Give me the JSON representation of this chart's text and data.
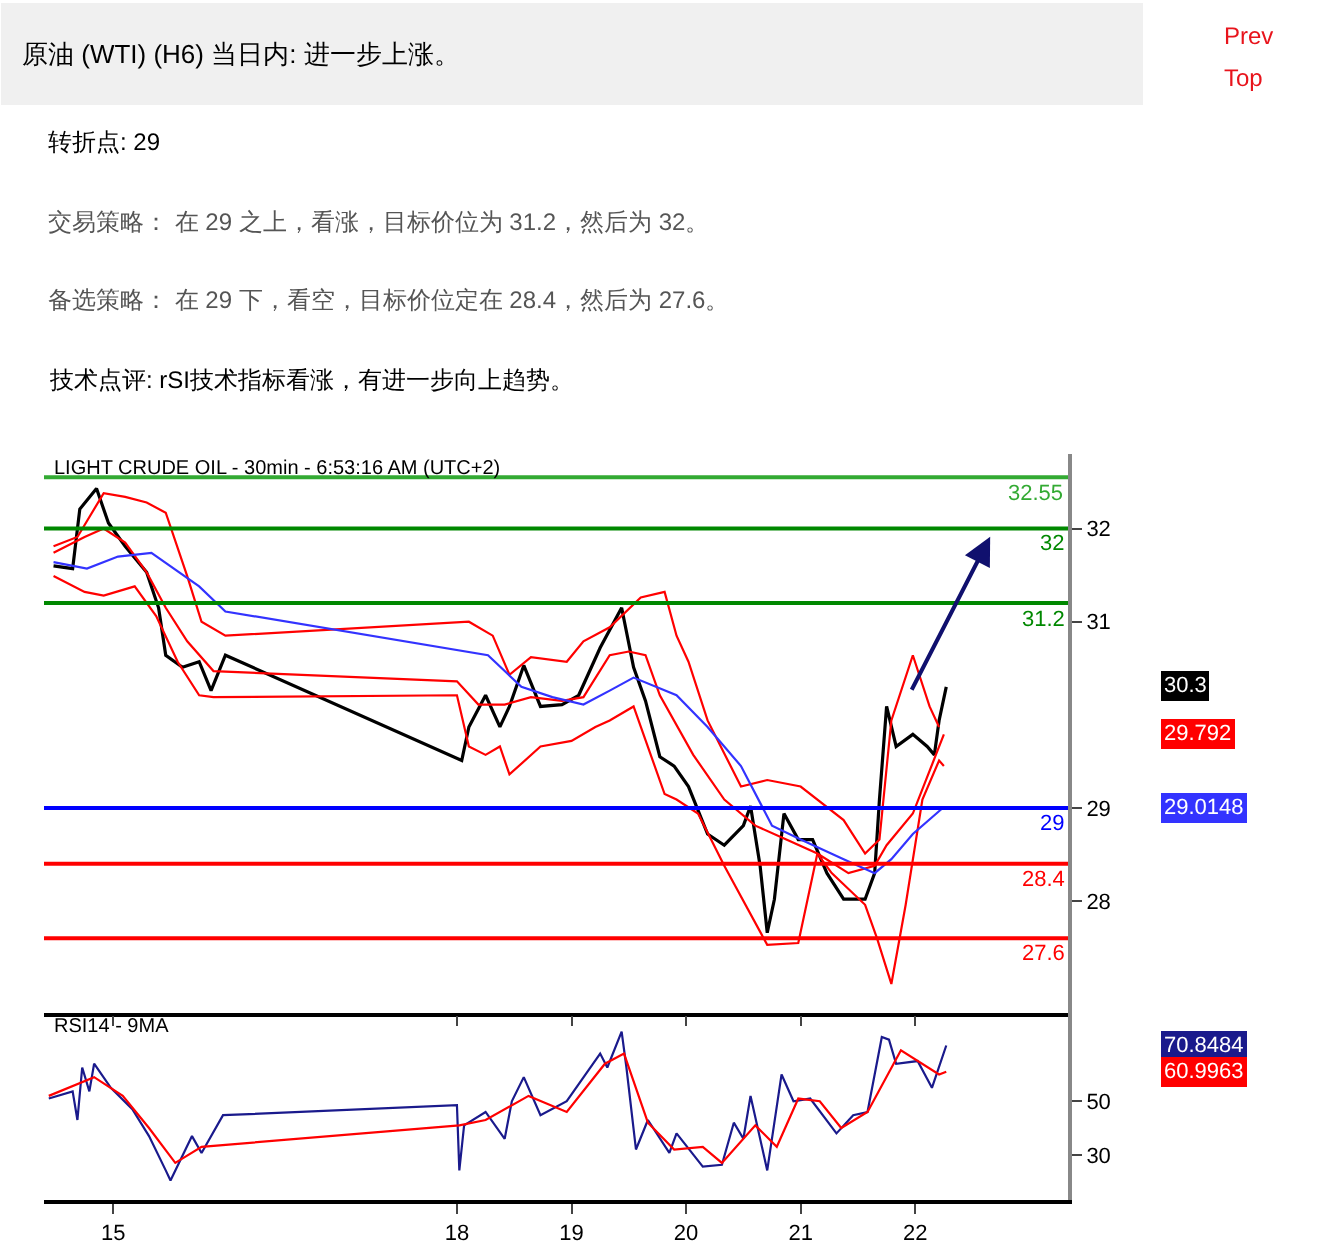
{
  "chart_data": [
    {
      "type": "line",
      "title": "原油 (WTI) (H6) 当日内: 进一步上涨。",
      "subtitle": "LIGHT CRUDE OIL - 30min - 6:53:16 AM (UTC+2)",
      "annotations": [
        "转折点: 29",
        "交易策略： 在 29 之上，看涨，目标价位为 31.2，然后为 32。",
        "备选策略： 在 29 下，看空，目标价位定在 28.4，然后为 27.6。",
        "技术点评: rSI技术指标看涨，有进一步向上趋势。",
        "Prev",
        "Top",
        "30.3",
        "29.792",
        "29.0148"
      ],
      "xlim": [
        "--01-14T09:30",
        "--01-23T08:00"
      ],
      "xticks": [
        {
          "value": "--01-15",
          "label": "15"
        },
        {
          "value": "--01-18",
          "label": "18"
        },
        {
          "value": "--01-19",
          "label": "19"
        },
        {
          "value": "--01-20",
          "label": "20"
        },
        {
          "value": "--01-21",
          "label": "21"
        },
        {
          "value": "--01-22",
          "label": "22"
        }
      ],
      "ylim": [
        26.8,
        32.8
      ],
      "yticks": [
        28,
        29,
        31,
        32
      ],
      "tick_labels": "y",
      "grid": false,
      "marker": "none",
      "ref_lines": [
        {
          "axis": "y",
          "value": 32.55,
          "label": "32.55",
          "color": "#33aa33"
        },
        {
          "axis": "y",
          "value": 32,
          "label": "32",
          "color": "#008800"
        },
        {
          "axis": "y",
          "value": 31.2,
          "label": "31.2",
          "color": "#008800"
        },
        {
          "axis": "y",
          "value": 29,
          "label": "29",
          "color": "#0000ff"
        },
        {
          "axis": "y",
          "value": 28.4,
          "label": "28.4",
          "color": "#ff0000"
        },
        {
          "axis": "y",
          "value": 27.6,
          "label": "27.6",
          "color": "#ff0000"
        }
      ],
      "series": [
        {
          "color": "#000000",
          "x": [
            "--01-14T11:30",
            "--01-14T15:30",
            "--01-14T17:00",
            "--01-14T20:30",
            "--01-14T23:00",
            "--01-15T02:30",
            "--01-15T07:00",
            "--01-15T09:30",
            "--01-15T11:00",
            "--01-15T14:30",
            "--01-15T18:00",
            "--01-15T20:30",
            "--01-15T23:30",
            "--01-18T01:00",
            "--01-18T02:30",
            "--01-18T06:00",
            "--01-18T09:00",
            "--01-18T11:00",
            "--01-18T14:00",
            "--01-18T17:30",
            "--01-18T22:00",
            "--01-19T01:30",
            "--01-19T06:00",
            "--01-19T10:30",
            "--01-19T13:00",
            "--01-19T15:30",
            "--01-19T18:30",
            "--01-19T21:30",
            "--01-20T00:30",
            "--01-20T04:30",
            "--01-20T08:00",
            "--01-20T12:00",
            "--01-20T13:30",
            "--01-20T15:30",
            "--01-20T17:00",
            "--01-20T18:30",
            "--01-20T20:30",
            "--01-20T23:30",
            "--01-21T02:30",
            "--01-21T05:30",
            "--01-21T09:00",
            "--01-21T13:30",
            "--01-21T15:30",
            "--01-21T16:30",
            "--01-21T18:00",
            "--01-21T20:00",
            "--01-21T23:30",
            "--01-22T02:30",
            "--01-22T04:00",
            "--01-22T05:00",
            "--01-22T06:30"
          ],
          "values": [
            31.6,
            31.57,
            32.21,
            32.43,
            32.06,
            31.81,
            31.53,
            31.15,
            30.64,
            30.51,
            30.57,
            30.26,
            30.64,
            29.51,
            29.87,
            30.21,
            29.87,
            30.09,
            30.53,
            30.09,
            30.11,
            30.21,
            30.72,
            31.15,
            30.51,
            30.15,
            29.55,
            29.45,
            29.23,
            28.72,
            28.6,
            28.81,
            29.02,
            28.38,
            27.66,
            28.02,
            28.94,
            28.66,
            28.66,
            28.3,
            28.02,
            28.02,
            28.3,
            29.09,
            30.09,
            29.66,
            29.79,
            29.66,
            29.57,
            29.94,
            30.3
          ]
        },
        {
          "color": "#ff0000",
          "x": [
            "--01-14T11:30",
            "--01-14T16:30",
            "--01-14T22:00",
            "--01-15T02:30",
            "--01-15T07:00",
            "--01-15T11:00",
            "--01-15T15:30",
            "--01-15T18:30",
            "--01-15T23:30",
            "--01-18T02:30",
            "--01-18T07:30",
            "--01-18T11:00",
            "--01-18T15:30",
            "--01-18T23:00",
            "--01-19T02:30",
            "--01-19T08:00",
            "--01-19T14:30",
            "--01-19T19:30",
            "--01-19T22:00",
            "--01-20T00:30",
            "--01-20T04:30",
            "--01-20T11:30",
            "--01-20T17:00",
            "--01-21T00:00",
            "--01-21T09:00",
            "--01-21T13:30",
            "--01-21T16:30",
            "--01-21T19:00",
            "--01-21T23:30",
            "--01-22T03:00",
            "--01-22T05:00"
          ],
          "values": [
            31.81,
            31.91,
            32.38,
            32.34,
            32.28,
            32.17,
            31.49,
            31.0,
            30.85,
            31.0,
            30.85,
            30.43,
            30.62,
            30.57,
            30.79,
            30.94,
            31.26,
            31.32,
            30.85,
            30.57,
            29.94,
            29.23,
            29.3,
            29.23,
            28.87,
            28.51,
            28.66,
            29.94,
            30.64,
            30.09,
            29.87
          ]
        },
        {
          "color": "#ff0000",
          "x": [
            "--01-14T11:30",
            "--01-14T18:00",
            "--01-14T22:00",
            "--01-15T04:30",
            "--01-15T09:00",
            "--01-15T13:30",
            "--01-15T18:00",
            "--01-15T21:00",
            "--01-18T00:00",
            "--01-18T02:30",
            "--01-18T06:00",
            "--01-18T09:00",
            "--01-18T11:00",
            "--01-18T17:30",
            "--01-19T00:00",
            "--01-19T05:00",
            "--01-19T08:00",
            "--01-19T13:00",
            "--01-19T19:30",
            "--01-19T22:00",
            "--01-20T02:30",
            "--01-20T08:00",
            "--01-20T17:00",
            "--01-20T23:30",
            "--01-21T03:30",
            "--01-21T06:30",
            "--01-21T13:30",
            "--01-21T16:00",
            "--01-21T19:00",
            "--01-21T22:00",
            "--01-22T01:30",
            "--01-22T05:00",
            "--01-22T06:00"
          ],
          "values": [
            31.49,
            31.32,
            31.28,
            31.38,
            31.06,
            30.57,
            30.21,
            30.19,
            30.21,
            29.66,
            29.57,
            29.66,
            29.36,
            29.66,
            29.72,
            29.87,
            29.94,
            30.09,
            29.15,
            29.09,
            28.94,
            28.38,
            27.53,
            27.55,
            28.51,
            28.3,
            27.96,
            27.6,
            27.11,
            27.96,
            29.09,
            29.51,
            29.45
          ]
        },
        {
          "color": "#ff0000",
          "x": [
            "--01-14T11:30",
            "--01-14T18:00",
            "--01-14T22:00",
            "--01-15T02:30",
            "--01-15T07:00",
            "--01-15T11:00",
            "--01-15T15:30",
            "--01-15T21:00",
            "--01-18T00:00",
            "--01-18T04:30",
            "--01-18T10:00",
            "--01-18T15:30",
            "--01-18T22:00",
            "--01-19T02:30",
            "--01-19T08:00",
            "--01-19T12:00",
            "--01-19T15:30",
            "--01-19T18:30",
            "--01-20T01:30",
            "--01-20T08:00",
            "--01-20T14:30",
            "--01-20T21:00",
            "--01-21T03:30",
            "--01-21T10:00",
            "--01-21T15:30",
            "--01-21T18:00",
            "--01-21T23:30",
            "--01-22T06:00"
          ],
          "values": [
            31.74,
            31.91,
            32.0,
            31.85,
            31.53,
            31.15,
            30.79,
            30.47,
            30.36,
            30.11,
            30.11,
            30.19,
            30.15,
            30.19,
            30.64,
            30.68,
            30.64,
            30.21,
            29.57,
            29.09,
            28.81,
            28.66,
            28.51,
            28.3,
            28.38,
            28.6,
            28.94,
            29.79
          ]
        },
        {
          "color": "#3333ff",
          "x": [
            "--01-14T11:30",
            "--01-14T18:30",
            "--01-15T01:00",
            "--01-15T08:00",
            "--01-15T18:00",
            "--01-15T23:30",
            "--01-18T06:30",
            "--01-18T13:30",
            "--01-18T20:00",
            "--01-19T02:30",
            "--01-19T08:00",
            "--01-19T13:00",
            "--01-19T22:00",
            "--01-20T04:30",
            "--01-20T11:30",
            "--01-20T18:00",
            "--01-21T00:00",
            "--01-21T09:00",
            "--01-21T15:30",
            "--01-21T19:00",
            "--01-21T23:30",
            "--01-22T06:00"
          ],
          "values": [
            31.64,
            31.57,
            31.7,
            31.74,
            31.38,
            31.11,
            30.64,
            30.3,
            30.19,
            30.11,
            30.26,
            30.4,
            30.21,
            29.87,
            29.45,
            28.81,
            28.66,
            28.45,
            28.3,
            28.45,
            28.72,
            29.01
          ]
        }
      ]
    },
    {
      "type": "line",
      "title": "RSI14 - 9MA",
      "annotations": [
        "70.8484",
        "60.9963"
      ],
      "x": [
        "--01-14T10:30",
        "--01-14T15:30",
        "--01-14T16:30",
        "--01-14T17:30",
        "--01-14T19:00",
        "--01-14T20:00",
        "--01-14T23:30",
        "--01-15T04:00",
        "--01-15T07:30",
        "--01-15T11:00",
        "--01-15T12:00",
        "--01-15T16:30",
        "--01-15T18:30",
        "--01-15T23:00",
        "--01-18T00:00",
        "--01-18T00:30",
        "--01-18T01:30",
        "--01-18T06:00",
        "--01-18T10:00",
        "--01-18T11:30",
        "--01-18T14:00",
        "--01-18T17:30",
        "--01-18T23:00",
        "--01-19T06:00",
        "--01-19T07:30",
        "--01-19T10:30",
        "--01-19T11:30",
        "--01-19T13:30",
        "--01-19T16:00",
        "--01-19T20:30",
        "--01-19T22:00",
        "--01-20T03:30",
        "--01-20T07:30",
        "--01-20T10:00",
        "--01-20T12:00",
        "--01-20T13:30",
        "--01-20T17:00",
        "--01-20T20:00",
        "--01-20T22:30",
        "--01-21T02:00",
        "--01-21T07:30",
        "--01-21T11:00",
        "--01-21T14:00",
        "--01-21T17:00",
        "--01-21T18:30",
        "--01-21T20:00",
        "--01-22T00:30",
        "--01-22T03:30",
        "--01-22T06:30"
      ],
      "xlim": [
        "--01-14T09:30",
        "--01-23T08:00"
      ],
      "xticks": [
        {
          "value": "--01-15",
          "label": "15"
        },
        {
          "value": "--01-18",
          "label": "18"
        },
        {
          "value": "--01-19",
          "label": "19"
        },
        {
          "value": "--01-20",
          "label": "20"
        },
        {
          "value": "--01-21",
          "label": "21"
        },
        {
          "value": "--01-22",
          "label": "22"
        }
      ],
      "ylim": [
        13,
        83
      ],
      "yticks": [
        30,
        50
      ],
      "grid": false,
      "marker": "none",
      "series": [
        {
          "color": "#1a1a8c",
          "values": [
            51,
            53.7,
            43,
            62.6,
            53.7,
            64,
            55,
            47,
            37,
            24.2,
            20.4,
            37,
            30.7,
            44.8,
            48.5,
            24.2,
            41,
            46,
            36,
            50,
            59,
            44.8,
            50,
            67.8,
            62.6,
            76,
            62.6,
            32,
            43,
            30.7,
            38,
            25.6,
            26.3,
            42,
            36,
            52,
            24.2,
            60,
            50,
            51,
            38,
            44.8,
            46,
            74,
            73,
            64,
            65,
            55,
            70.8
          ]
        },
        {
          "color": "#ff0000",
          "x": [
            "--01-14T10:30",
            "--01-14T20:00",
            "--01-15T02:00",
            "--01-15T07:30",
            "--01-15T13:00",
            "--01-15T18:30",
            "--01-18T00:30",
            "--01-18T06:00",
            "--01-18T15:00",
            "--01-18T23:00",
            "--01-19T07:00",
            "--01-19T11:00",
            "--01-19T16:00",
            "--01-19T21:30",
            "--01-20T03:30",
            "--01-20T07:30",
            "--01-20T14:30",
            "--01-20T19:00",
            "--01-20T23:30",
            "--01-21T04:00",
            "--01-21T08:30",
            "--01-21T14:00",
            "--01-21T21:00",
            "--01-22T05:00",
            "--01-22T06:30"
          ],
          "values": [
            52,
            59,
            52,
            40,
            27,
            33,
            41,
            43,
            52,
            46,
            64,
            67.8,
            42,
            32,
            33,
            27,
            41,
            33,
            51,
            50,
            40,
            46,
            69,
            60,
            61.0
          ]
        }
      ]
    }
  ]
}
